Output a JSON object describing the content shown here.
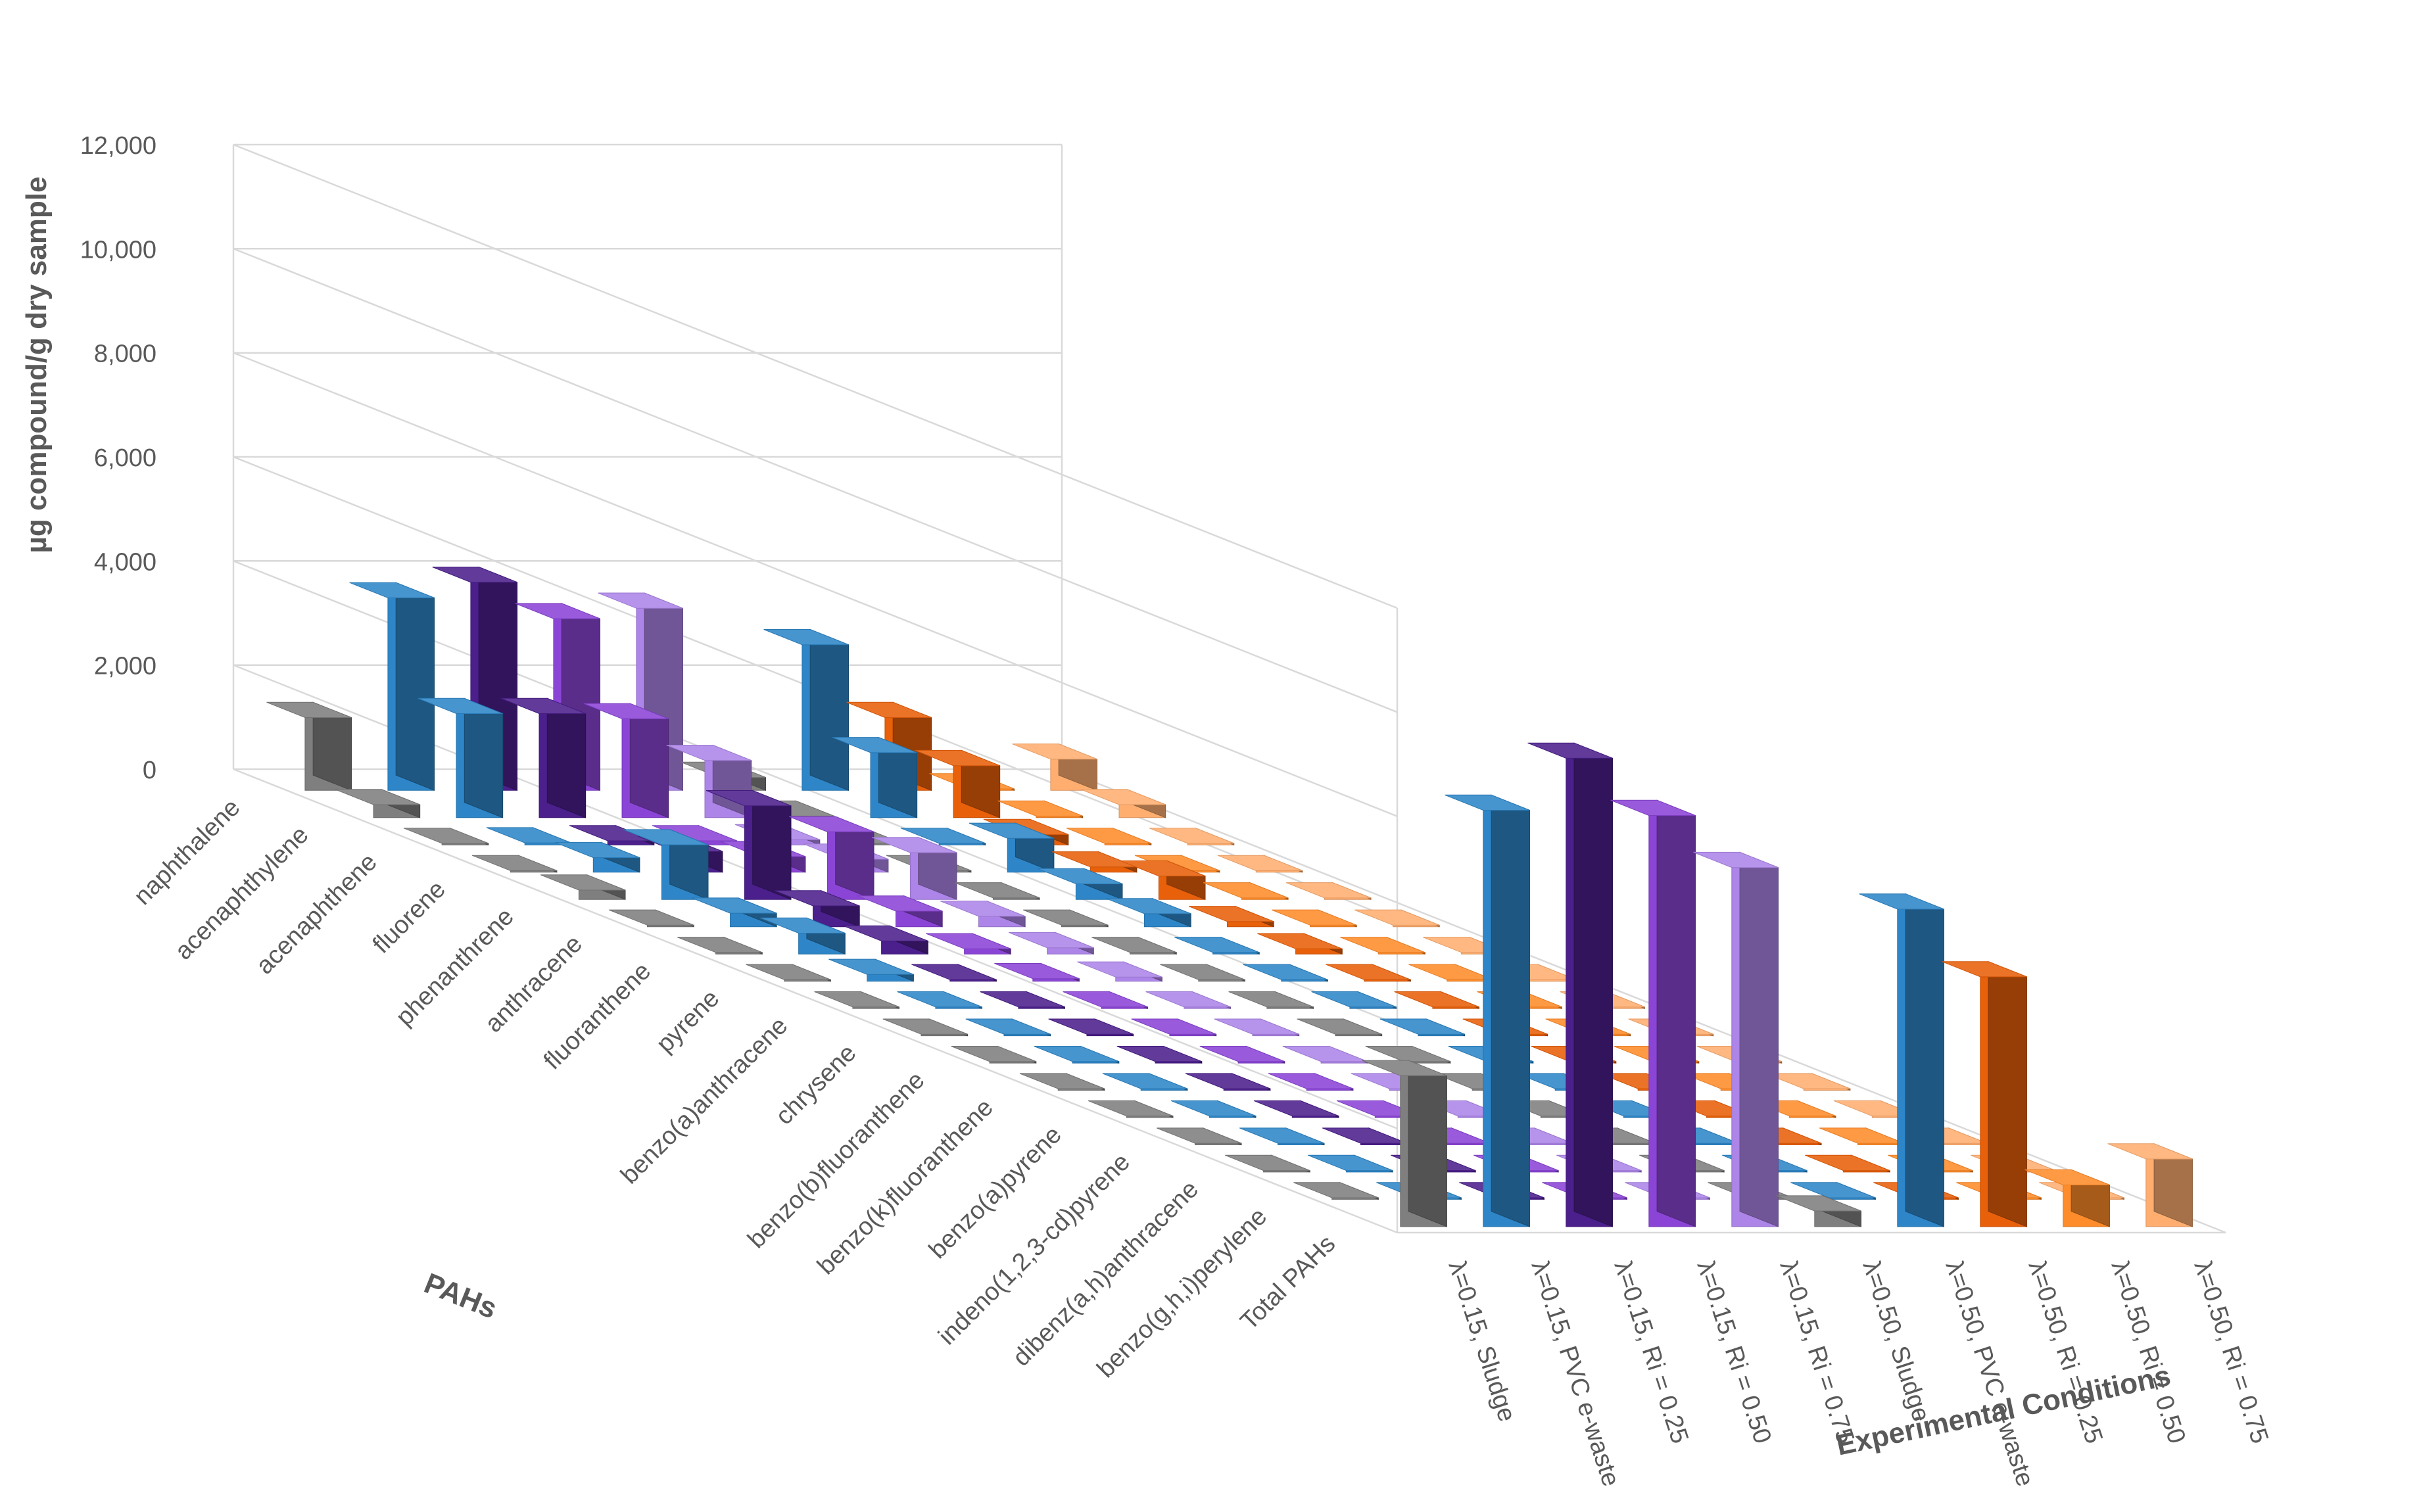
{
  "chart_data": {
    "type": "bar3d",
    "title": "",
    "ylabel": "µg compound/g dry sample",
    "xlabel": "PAHs",
    "zlabel": "Experimental Conditions",
    "ylim": [
      0,
      12000
    ],
    "yticks": [
      "0",
      "2,000",
      "4,000",
      "6,000",
      "8,000",
      "10,000",
      "12,000"
    ],
    "grid": true,
    "categories": [
      "naphthalene",
      "acenaphthylene",
      "acenaphthene",
      "fluorene",
      "phenanthrene",
      "anthracene",
      "fluoranthene",
      "pyrene",
      "benzo(a)anthracene",
      "chrysene",
      "benzo(b)fluoranthene",
      "benzo(k)fluoranthene",
      "benzo(a)pyrene",
      "indeno(1,2,3-cd)pyrene",
      "dibenz(a,h)anthracene",
      "benzo(g,h,i)perylene",
      "Total PAHs"
    ],
    "series": [
      {
        "name": "λ=0.15, Sludge",
        "color": "#7f7f7f",
        "values": [
          1400,
          250,
          30,
          30,
          180,
          30,
          30,
          30,
          30,
          30,
          30,
          30,
          30,
          30,
          30,
          30,
          2900
        ]
      },
      {
        "name": "λ=0.15, PVC e-waste",
        "color": "#2e86c8",
        "values": [
          3700,
          2000,
          40,
          280,
          1050,
          260,
          400,
          130,
          30,
          30,
          30,
          30,
          30,
          30,
          30,
          30,
          8000
        ]
      },
      {
        "name": "λ=0.15,  Ri = 0.25",
        "color": "#4b1f8c",
        "values": [
          4000,
          2000,
          80,
          400,
          1800,
          400,
          250,
          30,
          30,
          30,
          30,
          30,
          30,
          30,
          30,
          30,
          9000
        ]
      },
      {
        "name": "λ=0.15, Ri = 0.50",
        "color": "#8b45d6",
        "values": [
          3300,
          1900,
          80,
          300,
          1300,
          300,
          100,
          50,
          30,
          30,
          30,
          30,
          30,
          30,
          30,
          30,
          7900
        ]
      },
      {
        "name": "λ=0.15, Ri = 0.75",
        "color": "#ad85e8",
        "values": [
          3500,
          1100,
          100,
          250,
          900,
          200,
          120,
          80,
          30,
          30,
          30,
          30,
          30,
          30,
          30,
          30,
          6900
        ]
      },
      {
        "name": "λ=0.50, Sludge",
        "color": "#7f7f7f",
        "values": [
          250,
          30,
          30,
          30,
          30,
          30,
          30,
          30,
          30,
          30,
          30,
          30,
          30,
          30,
          30,
          30,
          300
        ]
      },
      {
        "name": "λ=0.50, PVC e-waste",
        "color": "#2e86c8",
        "values": [
          2800,
          1250,
          30,
          650,
          300,
          250,
          30,
          30,
          30,
          30,
          30,
          30,
          30,
          30,
          30,
          30,
          6100
        ]
      },
      {
        "name": "λ=0.50, Ri = 0.25",
        "color": "#e8600a",
        "values": [
          1400,
          1000,
          200,
          100,
          450,
          100,
          100,
          30,
          30,
          30,
          30,
          30,
          30,
          30,
          30,
          30,
          4800
        ]
      },
      {
        "name": "λ=0.50, Ri = 0.50",
        "color": "#ff8c2a",
        "values": [
          30,
          30,
          30,
          30,
          30,
          30,
          30,
          30,
          30,
          30,
          30,
          30,
          30,
          30,
          30,
          30,
          800
        ]
      },
      {
        "name": "λ=0.50, Ri = 0.75",
        "color": "#ffae70",
        "values": [
          600,
          250,
          30,
          30,
          30,
          30,
          30,
          30,
          30,
          30,
          30,
          30,
          30,
          30,
          30,
          30,
          1300
        ]
      }
    ]
  }
}
